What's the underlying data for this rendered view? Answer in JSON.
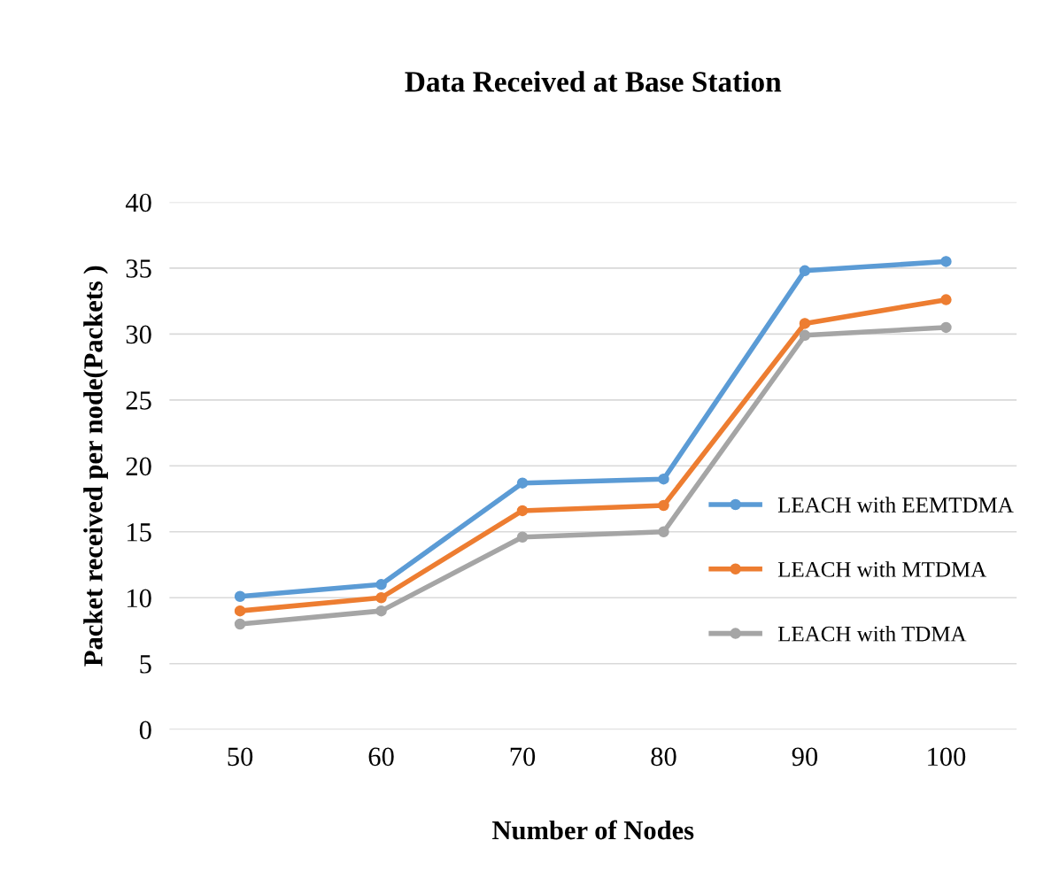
{
  "chart_data": {
    "type": "line",
    "title": "Data Received at Base Station",
    "xlabel": "Number of Nodes",
    "ylabel": "Packet received per node(Packets )",
    "categories": [
      "50",
      "60",
      "70",
      "80",
      "90",
      "100"
    ],
    "series": [
      {
        "name": "LEACH with EEMTDMA",
        "color": "#5b9bd5",
        "values": [
          10.1,
          11,
          18.7,
          19,
          34.8,
          35.5
        ]
      },
      {
        "name": "LEACH with MTDMA",
        "color": "#ed7d31",
        "values": [
          9,
          10,
          16.6,
          17,
          30.8,
          32.6
        ]
      },
      {
        "name": "LEACH with TDMA",
        "color": "#a5a5a5",
        "values": [
          8,
          9,
          14.6,
          15,
          29.9,
          30.5
        ]
      }
    ],
    "ylim": [
      0,
      40
    ],
    "yticks": [
      0,
      5,
      10,
      15,
      20,
      25,
      30,
      35,
      40
    ],
    "grid": "y",
    "legend": "right",
    "marker": "circle",
    "line_style": "solid"
  }
}
